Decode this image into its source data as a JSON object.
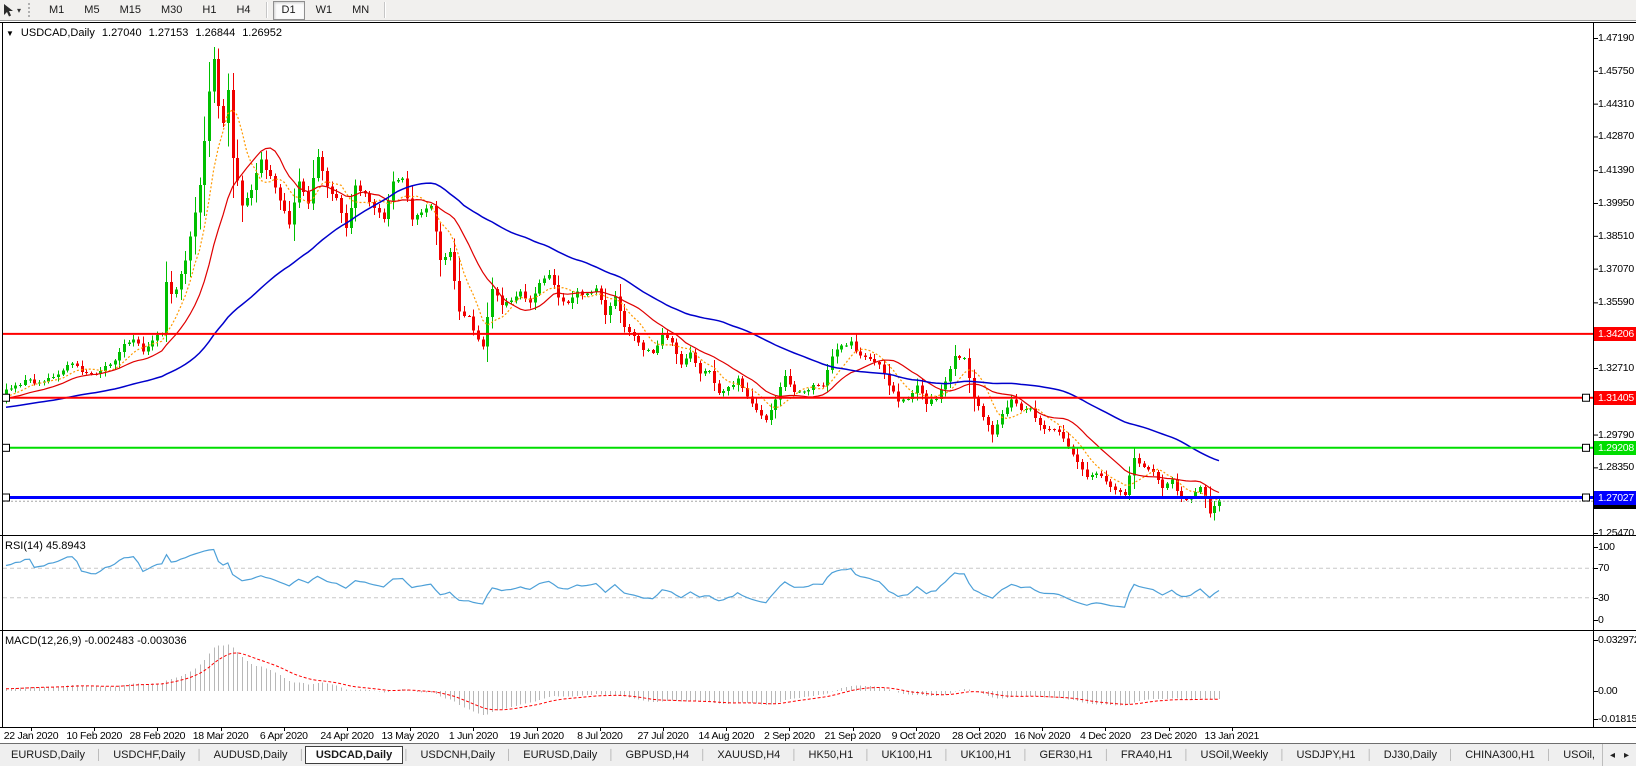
{
  "toolbar": {
    "dropdown_glyph": "▾",
    "timeframes": [
      "M1",
      "M5",
      "M15",
      "M30",
      "H1",
      "H4",
      "D1",
      "W1",
      "MN"
    ],
    "active_timeframe": "D1"
  },
  "chart": {
    "collapse_glyph": "▼",
    "title": "USDCAD,Daily",
    "open": "1.27040",
    "high": "1.27153",
    "low": "1.26844",
    "close": "1.26952",
    "hlines": [
      {
        "label": "1.34206",
        "value": 1.34206,
        "color": "#FF0000",
        "width": 2,
        "selected": false
      },
      {
        "label": "1.31405",
        "value": 1.31405,
        "color": "#FF0000",
        "width": 2,
        "selected": true
      },
      {
        "label": "1.29208",
        "value": 1.29208,
        "color": "#00DD00",
        "width": 2,
        "selected": true
      },
      {
        "label": "1.27027",
        "value": 1.27027,
        "color": "#0000FF",
        "width": 3,
        "selected": true
      }
    ]
  },
  "rsi": {
    "label": "RSI(14) 45.8943",
    "scale": [
      "100",
      "70",
      "30",
      "0"
    ],
    "line_color": "#4DA0D8"
  },
  "macd": {
    "label": "MACD(12,26,9) -0.002483 -0.003036",
    "scale": [
      "0.032972",
      "0.00",
      "-0.018154"
    ],
    "histogram_color": "#B8B8B8",
    "signal_color": "#FF0000"
  },
  "tabs": {
    "items": [
      "EURUSD,Daily",
      "USDCHF,Daily",
      "AUDUSD,Daily",
      "USDCAD,Daily",
      "USDCNH,Daily",
      "EURUSD,Daily",
      "GBPUSD,H4",
      "XAUUSD,H4",
      "HK50,H1",
      "UK100,H1",
      "UK100,H1",
      "GER30,H1",
      "FRA40,H1",
      "USOil,Weekly",
      "USDJPY,H1",
      "DJ30,Daily",
      "CHINA300,H1",
      "USOil,"
    ],
    "active_index": 3,
    "scroll_left": "◂",
    "scroll_right": "▸"
  },
  "colors": {
    "up": "#00BF00",
    "down": "#F00000",
    "ma_fast": "#FF9900",
    "ma_mid": "#E00000",
    "ma_slow": "#0000CC",
    "bid_line": "#A8A8A8"
  },
  "chart_data": {
    "type": "candlestick",
    "symbol": "USDCAD",
    "period": "Daily",
    "title": "USDCAD,Daily 1.27040 1.27153 1.26844 1.26952",
    "ohlc_current": {
      "open": 1.2704,
      "high": 1.27153,
      "low": 1.26844,
      "close": 1.26952
    },
    "ylim": [
      1.2547,
      1.4719
    ],
    "y_ticks": [
      "1.47190",
      "1.45750",
      "1.44310",
      "1.42870",
      "1.41390",
      "1.39950",
      "1.38510",
      "1.37070",
      "1.35590",
      "1.32710",
      "1.29790",
      "1.28350",
      "1.25470"
    ],
    "x_labels": [
      "22 Jan 2020",
      "10 Feb 2020",
      "28 Feb 2020",
      "18 Mar 2020",
      "6 Apr 2020",
      "24 Apr 2020",
      "13 May 2020",
      "1 Jun 2020",
      "19 Jun 2020",
      "8 Jul 2020",
      "27 Jul 2020",
      "14 Aug 2020",
      "2 Sep 2020",
      "21 Sep 2020",
      "9 Oct 2020",
      "28 Oct 2020",
      "16 Nov 2020",
      "4 Dec 2020",
      "23 Dec 2020",
      "13 Jan 2021"
    ],
    "levels": [
      {
        "value": 1.34206,
        "color": "red"
      },
      {
        "value": 1.31405,
        "color": "red"
      },
      {
        "value": 1.29208,
        "color": "green"
      },
      {
        "value": 1.27027,
        "color": "blue"
      }
    ],
    "bars_visible": 258,
    "prehistory": {
      "bars": 60,
      "from": 1.302,
      "to": 1.315
    },
    "close_anchors": [
      [
        0,
        1.317
      ],
      [
        4,
        1.3215
      ],
      [
        8,
        1.3205
      ],
      [
        12,
        1.3265
      ],
      [
        14,
        1.329
      ],
      [
        17,
        1.3245
      ],
      [
        20,
        1.3255
      ],
      [
        23,
        1.331
      ],
      [
        25,
        1.3385
      ],
      [
        27,
        1.3395
      ],
      [
        29,
        1.3345
      ],
      [
        31,
        1.34
      ],
      [
        33,
        1.3425
      ],
      [
        34,
        1.365
      ],
      [
        35,
        1.359
      ],
      [
        36,
        1.362
      ],
      [
        38,
        1.3745
      ],
      [
        40,
        1.396
      ],
      [
        41,
        1.408
      ],
      [
        42,
        1.427
      ],
      [
        43,
        1.448
      ],
      [
        44,
        1.463
      ],
      [
        45,
        1.442
      ],
      [
        46,
        1.434
      ],
      [
        47,
        1.4495
      ],
      [
        48,
        1.419
      ],
      [
        50,
        1.399
      ],
      [
        52,
        1.4055
      ],
      [
        54,
        1.4185
      ],
      [
        56,
        1.4105
      ],
      [
        58,
        1.401
      ],
      [
        60,
        1.3895
      ],
      [
        62,
        1.4085
      ],
      [
        64,
        1.4
      ],
      [
        66,
        1.42
      ],
      [
        68,
        1.406
      ],
      [
        70,
        1.4015
      ],
      [
        72,
        1.388
      ],
      [
        74,
        1.4065
      ],
      [
        76,
        1.403
      ],
      [
        78,
        1.3975
      ],
      [
        80,
        1.393
      ],
      [
        82,
        1.4085
      ],
      [
        84,
        1.411
      ],
      [
        86,
        1.3925
      ],
      [
        88,
        1.3955
      ],
      [
        90,
        1.3975
      ],
      [
        92,
        1.375
      ],
      [
        94,
        1.3775
      ],
      [
        96,
        1.3525
      ],
      [
        98,
        1.349
      ],
      [
        100,
        1.339
      ],
      [
        101,
        1.336
      ],
      [
        103,
        1.3625
      ],
      [
        105,
        1.355
      ],
      [
        107,
        1.357
      ],
      [
        109,
        1.36
      ],
      [
        111,
        1.355
      ],
      [
        113,
        1.364
      ],
      [
        115,
        1.368
      ],
      [
        117,
        1.358
      ],
      [
        119,
        1.355
      ],
      [
        121,
        1.361
      ],
      [
        123,
        1.359
      ],
      [
        125,
        1.362
      ],
      [
        127,
        1.351
      ],
      [
        129,
        1.358
      ],
      [
        131,
        1.345
      ],
      [
        133,
        1.341
      ],
      [
        135,
        1.335
      ],
      [
        137,
        1.334
      ],
      [
        139,
        1.341
      ],
      [
        141,
        1.339
      ],
      [
        143,
        1.329
      ],
      [
        145,
        1.334
      ],
      [
        147,
        1.325
      ],
      [
        149,
        1.326
      ],
      [
        151,
        1.316
      ],
      [
        153,
        1.318
      ],
      [
        155,
        1.322
      ],
      [
        157,
        1.315
      ],
      [
        159,
        1.309
      ],
      [
        161,
        1.304
      ],
      [
        163,
        1.313
      ],
      [
        165,
        1.323
      ],
      [
        167,
        1.317
      ],
      [
        169,
        1.316
      ],
      [
        171,
        1.319
      ],
      [
        173,
        1.32
      ],
      [
        175,
        1.332
      ],
      [
        177,
        1.337
      ],
      [
        179,
        1.338
      ],
      [
        181,
        1.332
      ],
      [
        183,
        1.331
      ],
      [
        185,
        1.328
      ],
      [
        187,
        1.32
      ],
      [
        189,
        1.312
      ],
      [
        191,
        1.314
      ],
      [
        193,
        1.319
      ],
      [
        195,
        1.312
      ],
      [
        197,
        1.313
      ],
      [
        199,
        1.321
      ],
      [
        201,
        1.332
      ],
      [
        203,
        1.332
      ],
      [
        205,
        1.314
      ],
      [
        207,
        1.306
      ],
      [
        209,
        1.298
      ],
      [
        211,
        1.307
      ],
      [
        213,
        1.314
      ],
      [
        215,
        1.308
      ],
      [
        217,
        1.309
      ],
      [
        219,
        1.302
      ],
      [
        221,
        1.3
      ],
      [
        223,
        1.299
      ],
      [
        225,
        1.293
      ],
      [
        227,
        1.286
      ],
      [
        229,
        1.28
      ],
      [
        231,
        1.281
      ],
      [
        233,
        1.277
      ],
      [
        235,
        1.274
      ],
      [
        237,
        1.272
      ],
      [
        239,
        1.287
      ],
      [
        241,
        1.284
      ],
      [
        243,
        1.282
      ],
      [
        245,
        1.274
      ],
      [
        247,
        1.278
      ],
      [
        249,
        1.269
      ],
      [
        251,
        1.27
      ],
      [
        253,
        1.275
      ],
      [
        255,
        1.264
      ],
      [
        257,
        1.2695
      ]
    ],
    "moving_averages": [
      {
        "name": "fast",
        "window": 7,
        "style": "dotted-orange"
      },
      {
        "name": "mid",
        "window": 15,
        "style": "solid-red"
      },
      {
        "name": "slow",
        "window": 50,
        "style": "solid-blue"
      }
    ],
    "indicators": [
      {
        "name": "RSI",
        "period": 14,
        "last_value": 45.8943,
        "range": [
          0,
          100
        ],
        "levels": [
          70,
          30
        ]
      },
      {
        "name": "MACD",
        "fast": 12,
        "slow": 26,
        "signal": 9,
        "last_values": [
          -0.002483,
          -0.003036
        ],
        "scale_max": 0.032972,
        "scale_min": -0.018154
      }
    ]
  }
}
